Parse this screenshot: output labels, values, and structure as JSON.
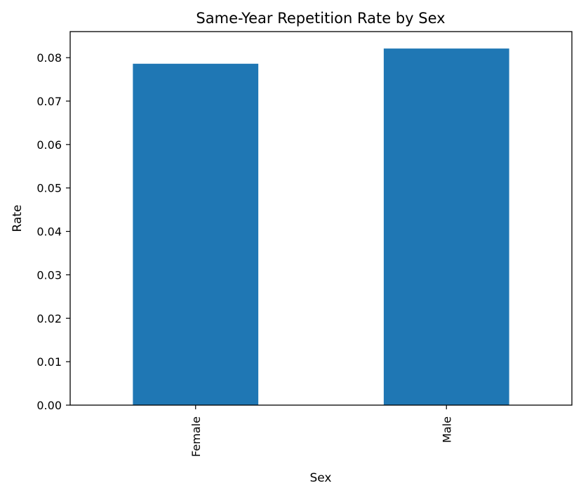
{
  "chart_data": {
    "type": "bar",
    "title": "Same-Year Repetition Rate by Sex",
    "xlabel": "Sex",
    "ylabel": "Rate",
    "categories": [
      "Female",
      "Male"
    ],
    "values": [
      0.0786,
      0.0821
    ],
    "ylim": [
      0,
      0.086
    ],
    "yticks": [
      0.0,
      0.01,
      0.02,
      0.03,
      0.04,
      0.05,
      0.06,
      0.07,
      0.08
    ],
    "ytick_labels": [
      "0.00",
      "0.01",
      "0.02",
      "0.03",
      "0.04",
      "0.05",
      "0.06",
      "0.07",
      "0.08"
    ],
    "x_tick_rotation": "vertical",
    "bar_color": "#1f77b4",
    "grid": false,
    "legend": "none"
  }
}
